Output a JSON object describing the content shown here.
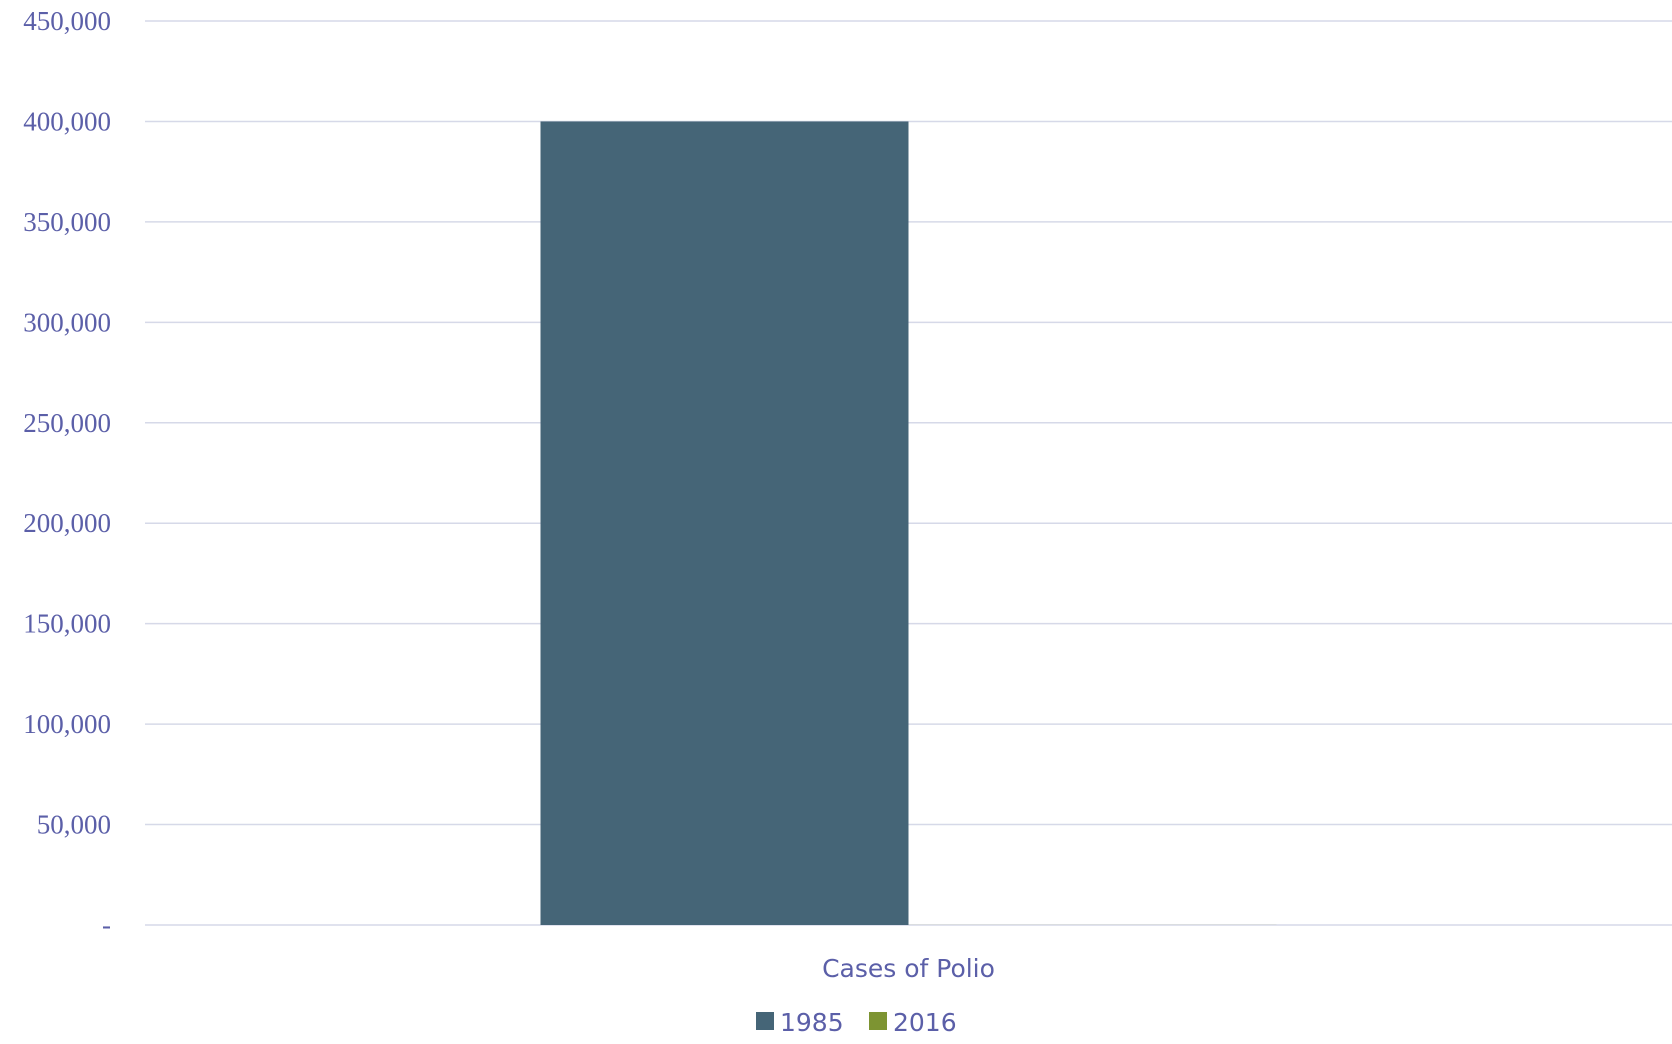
{
  "chart_data": {
    "type": "bar",
    "categories": [
      "Cases of Polio"
    ],
    "series": [
      {
        "name": "1985",
        "values": [
          400000
        ],
        "color": "#456577"
      },
      {
        "name": "2016",
        "values": [
          37
        ],
        "color": "#7d9432"
      }
    ],
    "y_ticks": [
      0,
      50000,
      100000,
      150000,
      200000,
      250000,
      300000,
      350000,
      400000,
      450000
    ],
    "y_tick_labels": [
      "-",
      "50,000",
      "100,000",
      "150,000",
      "200,000",
      "250,000",
      "300,000",
      "350,000",
      "400,000",
      "450,000"
    ],
    "ylim": [
      0,
      450000
    ],
    "grid": true,
    "legend_position": "bottom",
    "title": "",
    "xlabel": "",
    "ylabel": ""
  }
}
